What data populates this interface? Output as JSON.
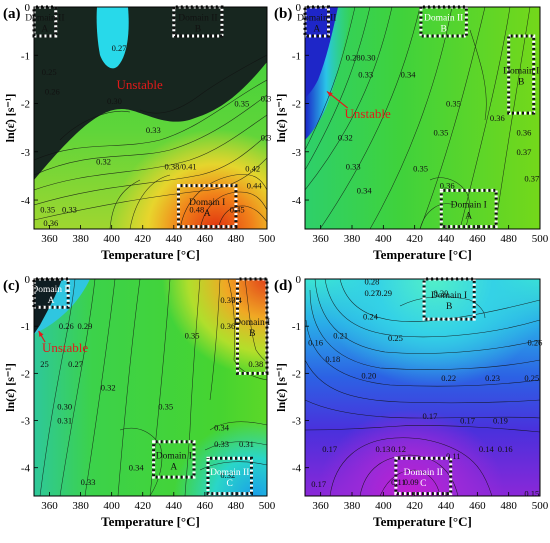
{
  "figure": {
    "panels": [
      {
        "letter": "(a)",
        "xlabel": "Temperature [°C]",
        "ylabel": "ln(ε̇) [s⁻¹]",
        "xticks": [
          "360",
          "380",
          "400",
          "420",
          "440",
          "460",
          "480",
          "500"
        ],
        "yticks": [
          "0",
          "-1",
          "-2",
          "-3",
          "-4"
        ],
        "domain_boxes": [
          {
            "line1": "Domain II",
            "line2": "A",
            "x": [
              350,
              364
            ],
            "y": [
              -0.6,
              0
            ]
          },
          {
            "line1": "Domain II",
            "line2": "B",
            "x": [
              440,
              471
            ],
            "y": [
              -0.6,
              0
            ]
          },
          {
            "line1": "Domain I",
            "line2": "A",
            "x": [
              443,
              480
            ],
            "y": [
              -4.55,
              -3.7
            ]
          }
        ],
        "unstable": {
          "label": "Unstable",
          "x": 418,
          "y": -1.7,
          "arrow": false
        },
        "contour_labels": [
          {
            "t": "0.27",
            "x": 400,
            "y": -0.85
          },
          {
            "t": "0.30",
            "x": 397,
            "y": -1.95
          },
          {
            "t": "0.35",
            "x": 479,
            "y": -2.0
          },
          {
            "t": "0.3",
            "x": 496,
            "y": -1.9
          },
          {
            "t": "0.33",
            "x": 422,
            "y": -2.55
          },
          {
            "t": "0.3",
            "x": 496,
            "y": -2.7
          },
          {
            "t": "0.32",
            "x": 390,
            "y": -3.2
          },
          {
            "t": "0.38/0.41",
            "x": 434,
            "y": -3.3
          },
          {
            "t": "0.42",
            "x": 486,
            "y": -3.35
          },
          {
            "t": "0.44",
            "x": 487,
            "y": -3.7
          },
          {
            "t": "0.35",
            "x": 354,
            "y": -4.2
          },
          {
            "t": "0.33",
            "x": 368,
            "y": -4.2
          },
          {
            "t": "0.36",
            "x": 356,
            "y": -4.48
          },
          {
            "t": "0.48",
            "x": 450,
            "y": -4.2
          },
          {
            "t": "0.45",
            "x": 476,
            "y": -4.2
          },
          {
            "t": "0.26",
            "x": 357,
            "y": -1.75
          },
          {
            "t": "0.25",
            "x": 355,
            "y": -1.35
          }
        ]
      },
      {
        "letter": "(b)",
        "xlabel": "Temperature [°C]",
        "ylabel": "ln(ε̇) [s⁻¹]",
        "xticks": [
          "360",
          "380",
          "400",
          "420",
          "440",
          "460",
          "480",
          "500"
        ],
        "yticks": [
          "0",
          "-1",
          "-2",
          "-3",
          "-4"
        ],
        "domain_boxes": [
          {
            "line1": "Domain II",
            "line2": "A",
            "x": [
              350,
              365
            ],
            "y": [
              -0.6,
              0
            ]
          },
          {
            "line1": "Domain II",
            "line2": "B",
            "x": [
              424,
              453
            ],
            "y": [
              -0.6,
              0
            ]
          },
          {
            "line1": "Domain I",
            "line2": "B",
            "x": [
              480,
              496
            ],
            "y": [
              -2.2,
              -0.6
            ]
          },
          {
            "line1": "Domain I",
            "line2": "A",
            "x": [
              437,
              472
            ],
            "y": [
              -4.55,
              -3.8
            ]
          }
        ],
        "unstable": {
          "label": "Unstable",
          "x": 390,
          "y": -2.3,
          "arrow": true,
          "ax": 364,
          "ay": -1.75
        },
        "contour_labels": [
          {
            "t": "0.280.30",
            "x": 376,
            "y": -1.05
          },
          {
            "t": "0.33",
            "x": 384,
            "y": -1.4
          },
          {
            "t": "0.34",
            "x": 411,
            "y": -1.4
          },
          {
            "t": "0.35",
            "x": 440,
            "y": -2.0
          },
          {
            "t": "0.36",
            "x": 468,
            "y": -2.3
          },
          {
            "t": "0.35",
            "x": 432,
            "y": -2.6
          },
          {
            "t": "0.36",
            "x": 485,
            "y": -2.6
          },
          {
            "t": "0.37",
            "x": 485,
            "y": -3.0
          },
          {
            "t": "0.32",
            "x": 371,
            "y": -2.7
          },
          {
            "t": "0.33",
            "x": 376,
            "y": -3.3
          },
          {
            "t": "0.35",
            "x": 419,
            "y": -3.35
          },
          {
            "t": "0.36",
            "x": 436,
            "y": -3.7
          },
          {
            "t": "0.34",
            "x": 383,
            "y": -3.8
          },
          {
            "t": "0.37",
            "x": 490,
            "y": -3.55
          }
        ]
      },
      {
        "letter": "(c)",
        "xlabel": "Temperature [°C]",
        "ylabel": "ln(ε̇) [s⁻¹]",
        "xticks": [
          "360",
          "380",
          "400",
          "420",
          "440",
          "460",
          "480",
          "500"
        ],
        "yticks": [
          "0",
          "-1",
          "-2",
          "-3",
          "-4"
        ],
        "domain_boxes": [
          {
            "line1": "Domain II",
            "line2": "A",
            "x": [
              350,
              372
            ],
            "y": [
              -0.6,
              0
            ]
          },
          {
            "line1": "Domain I",
            "line2": "B",
            "x": [
              481,
              500
            ],
            "y": [
              -2.0,
              0
            ]
          },
          {
            "line1": "Domain I",
            "line2": "A",
            "x": [
              427,
              453
            ],
            "y": [
              -4.2,
              -3.45
            ]
          },
          {
            "line1": "Domain II",
            "line2": "C",
            "x": [
              462,
              490
            ],
            "y": [
              -4.55,
              -3.8
            ]
          }
        ],
        "unstable": {
          "label": "Unstable",
          "x": 370,
          "y": -1.55,
          "arrow": true,
          "ax": 353,
          "ay": -1.1
        },
        "contour_labels": [
          {
            "t": "0.37",
            "x": 470,
            "y": -0.45
          },
          {
            "t": "0.4",
            "x": 477,
            "y": -0.45
          },
          {
            "t": "0.36",
            "x": 470,
            "y": -1.0
          },
          {
            "t": "0.26",
            "x": 366,
            "y": -1.0
          },
          {
            "t": "0.29",
            "x": 378,
            "y": -1.0
          },
          {
            "t": "0.35",
            "x": 447,
            "y": -1.2
          },
          {
            "t": "0.27",
            "x": 372,
            "y": -1.8
          },
          {
            "t": "25",
            "x": 354,
            "y": -1.8
          },
          {
            "t": "0.32",
            "x": 393,
            "y": -2.3
          },
          {
            "t": "0.38",
            "x": 488,
            "y": -1.8
          },
          {
            "t": "0.30",
            "x": 365,
            "y": -2.7
          },
          {
            "t": "0.35",
            "x": 430,
            "y": -2.7
          },
          {
            "t": "0.31",
            "x": 365,
            "y": -3.0
          },
          {
            "t": "0.34",
            "x": 466,
            "y": -3.15
          },
          {
            "t": "0.33",
            "x": 466,
            "y": -3.5
          },
          {
            "t": "0.31",
            "x": 482,
            "y": -3.5
          },
          {
            "t": "0.34",
            "x": 411,
            "y": -4.0
          },
          {
            "t": "0.33",
            "x": 380,
            "y": -4.3
          },
          {
            "t": "0.32",
            "x": 470,
            "y": -4.15
          }
        ]
      },
      {
        "letter": "(d)",
        "xlabel": "Temperature [°C]",
        "ylabel": "ln(ε̇) [s⁻¹]",
        "xticks": [
          "360",
          "380",
          "400",
          "420",
          "440",
          "460",
          "480",
          "500"
        ],
        "yticks": [
          "0",
          "-1",
          "-2",
          "-3",
          "-4"
        ],
        "domain_boxes": [
          {
            "line1": "Domain I",
            "line2": "B",
            "x": [
              426,
              458
            ],
            "y": [
              -0.85,
              0
            ]
          },
          {
            "line1": "Domain II",
            "line2": "C",
            "x": [
              408,
              443
            ],
            "y": [
              -4.55,
              -3.8
            ]
          }
        ],
        "unstable": null,
        "contour_labels": [
          {
            "t": "0.28",
            "x": 388,
            "y": -0.05
          },
          {
            "t": "0.27",
            "x": 388,
            "y": -0.3
          },
          {
            "t": "0.29",
            "x": 396,
            "y": -0.3
          },
          {
            "t": "0.30",
            "x": 432,
            "y": -0.3
          },
          {
            "t": "0.24",
            "x": 387,
            "y": -0.8
          },
          {
            "t": "0.21",
            "x": 368,
            "y": -1.2
          },
          {
            "t": "0.25",
            "x": 403,
            "y": -1.25
          },
          {
            "t": "0.26",
            "x": 492,
            "y": -1.35
          },
          {
            "t": "0.16",
            "x": 352,
            "y": -1.35
          },
          {
            "t": "0.18",
            "x": 363,
            "y": -1.7
          },
          {
            "t": "0.20",
            "x": 386,
            "y": -2.05
          },
          {
            "t": "0.22",
            "x": 437,
            "y": -2.1
          },
          {
            "t": "0.23",
            "x": 465,
            "y": -2.1
          },
          {
            "t": "0.25",
            "x": 490,
            "y": -2.1
          },
          {
            "t": "0.17",
            "x": 425,
            "y": -2.9
          },
          {
            "t": "0.17",
            "x": 449,
            "y": -3.0
          },
          {
            "t": "0.19",
            "x": 470,
            "y": -3.0
          },
          {
            "t": "0.17",
            "x": 361,
            "y": -3.6
          },
          {
            "t": "0.13",
            "x": 395,
            "y": -3.6
          },
          {
            "t": "0.12",
            "x": 405,
            "y": -3.6
          },
          {
            "t": "0.11",
            "x": 440,
            "y": -3.75
          },
          {
            "t": "0.14",
            "x": 461,
            "y": -3.6
          },
          {
            "t": "0.16",
            "x": 473,
            "y": -3.6
          },
          {
            "t": "0.17",
            "x": 354,
            "y": -4.35
          },
          {
            "t": "0.11",
            "x": 405,
            "y": -4.3
          },
          {
            "t": "0.09",
            "x": 413,
            "y": -4.3
          },
          {
            "t": "0.15",
            "x": 490,
            "y": -4.55
          }
        ]
      }
    ]
  },
  "chart_data": [
    {
      "type": "heatmap",
      "title": "(a)",
      "xlabel": "Temperature [°C]",
      "ylabel": "ln(ε̇) [s⁻¹]",
      "xlim": [
        350,
        500
      ],
      "ylim": [
        -4.6,
        0
      ],
      "colors": {
        "low": "#1b3a2a",
        "mid": "#33d63a",
        "high": "#e23c12",
        "unstable_region": "#1a2e24",
        "cyan_band": "#2ad6e8"
      },
      "peak": {
        "x": 460,
        "y": -4.5,
        "value": 0.48
      },
      "unstable_region_label": "Unstable"
    },
    {
      "type": "heatmap",
      "title": "(b)",
      "xlabel": "Temperature [°C]",
      "ylabel": "ln(ε̇) [s⁻¹]",
      "xlim": [
        350,
        500
      ],
      "ylim": [
        -4.6,
        0
      ],
      "colors": {
        "low": "#1e2fd0",
        "mid": "#3fd241",
        "high": "#7fdc12"
      },
      "unstable_region_label": "Unstable"
    },
    {
      "type": "heatmap",
      "title": "(c)",
      "xlabel": "Temperature [°C]",
      "ylabel": "ln(ε̇) [s⁻¹]",
      "xlim": [
        350,
        500
      ],
      "ylim": [
        -4.6,
        0
      ],
      "colors": {
        "low": "#1a2e24",
        "mid": "#3dd23c",
        "high": "#e4561b"
      },
      "unstable_region_label": "Unstable"
    },
    {
      "type": "heatmap",
      "title": "(d)",
      "xlabel": "Temperature [°C]",
      "ylabel": "ln(ε̇) [s⁻¹]",
      "xlim": [
        350,
        500
      ],
      "ylim": [
        -4.6,
        0
      ],
      "colors": {
        "low": "#b020d8",
        "mid": "#3040e0",
        "high": "#30e8c8"
      }
    }
  ]
}
